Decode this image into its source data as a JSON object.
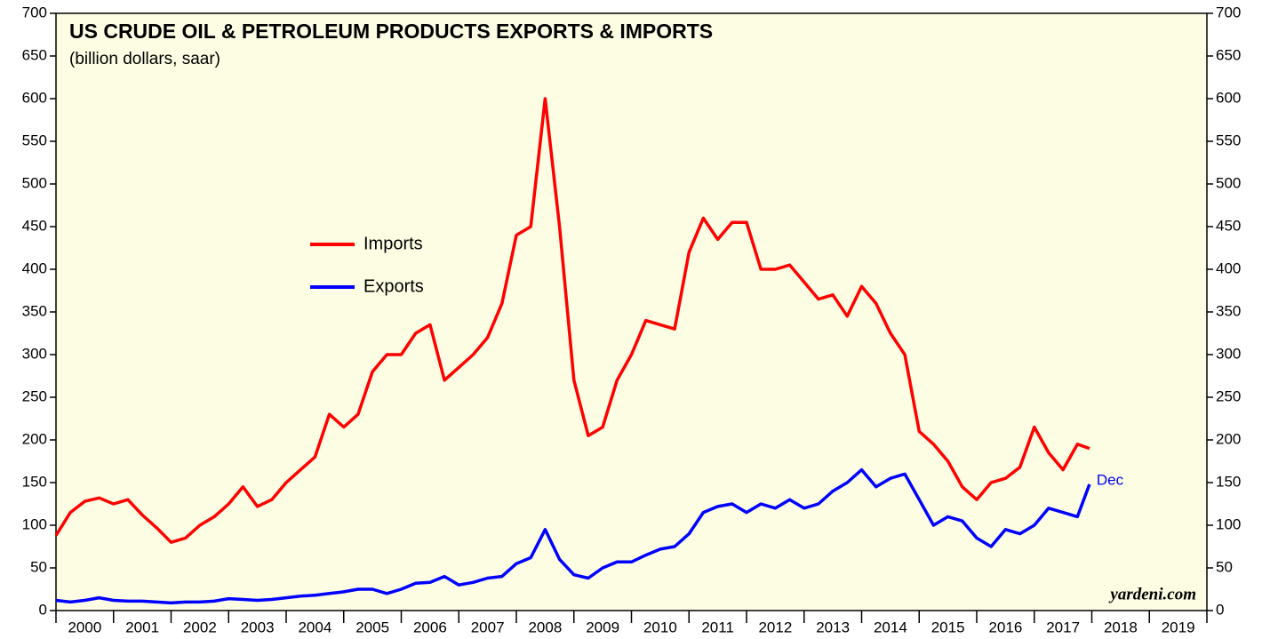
{
  "chart_data": {
    "type": "line",
    "title": "US CRUDE OIL & PETROLEUM PRODUCTS EXPORTS & IMPORTS",
    "subtitle": "(billion dollars, saar)",
    "source": "yardeni.com",
    "end_label": "Dec",
    "year_labels": [
      "2000",
      "2001",
      "2002",
      "2003",
      "2004",
      "2005",
      "2006",
      "2007",
      "2008",
      "2009",
      "2010",
      "2011",
      "2012",
      "2013",
      "2014",
      "2015",
      "2016",
      "2017",
      "2018",
      "2019"
    ],
    "xlim": [
      2000,
      2020
    ],
    "xticks": [
      2000,
      2001,
      2002,
      2003,
      2004,
      2005,
      2006,
      2007,
      2008,
      2009,
      2010,
      2011,
      2012,
      2013,
      2014,
      2015,
      2016,
      2017,
      2018,
      2019,
      2020
    ],
    "ylim": [
      0,
      700
    ],
    "yticks": [
      0,
      50,
      100,
      150,
      200,
      250,
      300,
      350,
      400,
      450,
      500,
      550,
      600,
      650,
      700
    ],
    "background": "#fdfde4",
    "x": [
      2000,
      2000.25,
      2000.5,
      2000.75,
      2001,
      2001.25,
      2001.5,
      2001.75,
      2002,
      2002.25,
      2002.5,
      2002.75,
      2003,
      2003.25,
      2003.5,
      2003.75,
      2004,
      2004.25,
      2004.5,
      2004.75,
      2005,
      2005.25,
      2005.5,
      2005.75,
      2006,
      2006.25,
      2006.5,
      2006.75,
      2007,
      2007.25,
      2007.5,
      2007.75,
      2008,
      2008.25,
      2008.5,
      2008.75,
      2009,
      2009.25,
      2009.5,
      2009.75,
      2010,
      2010.25,
      2010.5,
      2010.75,
      2011,
      2011.25,
      2011.5,
      2011.75,
      2012,
      2012.25,
      2012.5,
      2012.75,
      2013,
      2013.25,
      2013.5,
      2013.75,
      2014,
      2014.25,
      2014.5,
      2014.75,
      2015,
      2015.25,
      2015.5,
      2015.75,
      2016,
      2016.25,
      2016.5,
      2016.75,
      2017,
      2017.25,
      2017.5,
      2017.75,
      2017.96
    ],
    "series": [
      {
        "name": "Imports",
        "color": "#ff0000",
        "values": [
          88,
          115,
          128,
          132,
          125,
          130,
          112,
          97,
          80,
          85,
          100,
          110,
          125,
          145,
          122,
          130,
          150,
          165,
          180,
          230,
          215,
          230,
          280,
          300,
          300,
          325,
          335,
          270,
          285,
          300,
          320,
          360,
          440,
          450,
          600,
          450,
          270,
          205,
          215,
          270,
          300,
          340,
          335,
          330,
          420,
          460,
          435,
          455,
          455,
          400,
          400,
          405,
          385,
          365,
          370,
          345,
          380,
          360,
          325,
          300,
          210,
          195,
          175,
          145,
          130,
          150,
          155,
          168,
          215,
          185,
          165,
          195,
          190
        ]
      },
      {
        "name": "Exports",
        "color": "#0000ff",
        "values": [
          12,
          10,
          12,
          15,
          12,
          11,
          11,
          10,
          9,
          10,
          10,
          11,
          14,
          13,
          12,
          13,
          15,
          17,
          18,
          20,
          22,
          25,
          25,
          20,
          25,
          32,
          33,
          40,
          30,
          33,
          38,
          40,
          55,
          62,
          95,
          60,
          42,
          38,
          50,
          57,
          57,
          65,
          72,
          75,
          90,
          115,
          122,
          125,
          115,
          125,
          120,
          130,
          120,
          125,
          140,
          150,
          165,
          145,
          155,
          160,
          130,
          100,
          110,
          105,
          85,
          75,
          95,
          90,
          100,
          120,
          115,
          110,
          148
        ]
      }
    ]
  }
}
